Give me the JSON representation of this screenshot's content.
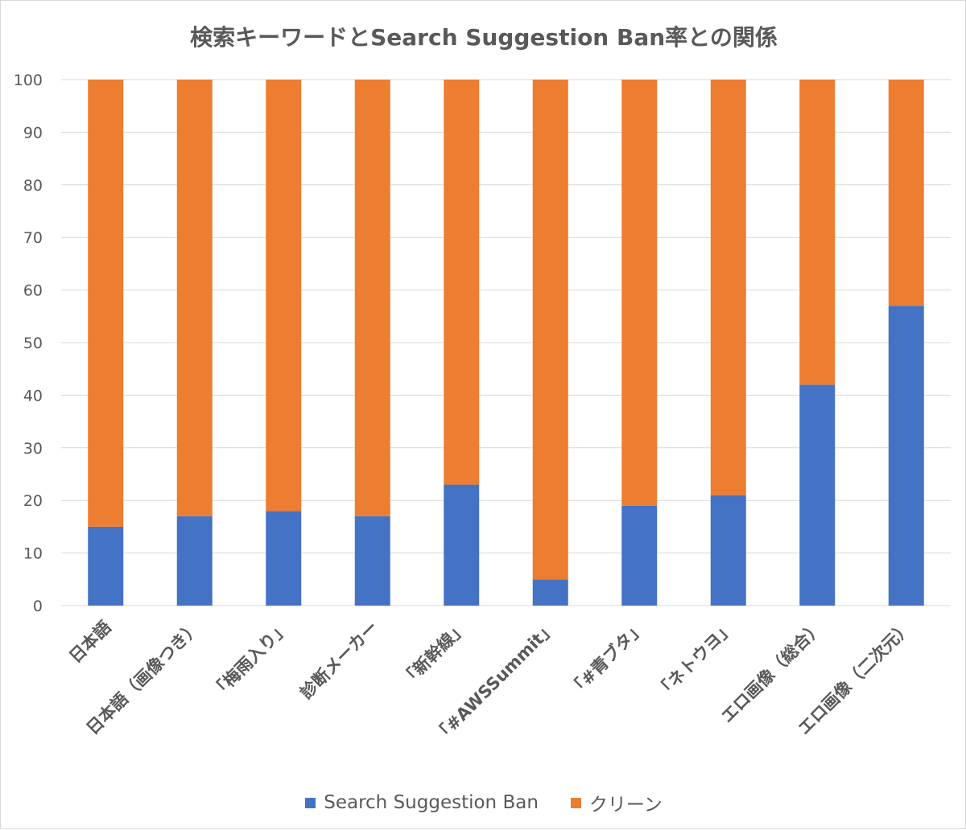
{
  "chart_data": {
    "type": "bar",
    "stacked": true,
    "title": "検索キーワードとSearch Suggestion Ban率との関係",
    "categories": [
      "日本語",
      "日本語（画像つき）",
      "「梅雨入り」",
      "診断メーカー",
      "「新幹線」",
      "「#AWSSummit」",
      "「#青ブタ」",
      "「ネトウヨ」",
      "エロ画像（総合）",
      "エロ画像（二次元）"
    ],
    "series": [
      {
        "name": "Search Suggestion Ban",
        "color": "#4472c4",
        "values": [
          15,
          17,
          18,
          17,
          23,
          5,
          19,
          21,
          42,
          57
        ]
      },
      {
        "name": "クリーン",
        "color": "#ed7d31",
        "values": [
          85,
          83,
          82,
          83,
          77,
          95,
          81,
          79,
          58,
          43
        ]
      }
    ],
    "ylim": [
      0,
      100
    ],
    "yticks": [
      0,
      10,
      20,
      30,
      40,
      50,
      60,
      70,
      80,
      90,
      100
    ],
    "grid": true,
    "legend_position": "bottom"
  }
}
